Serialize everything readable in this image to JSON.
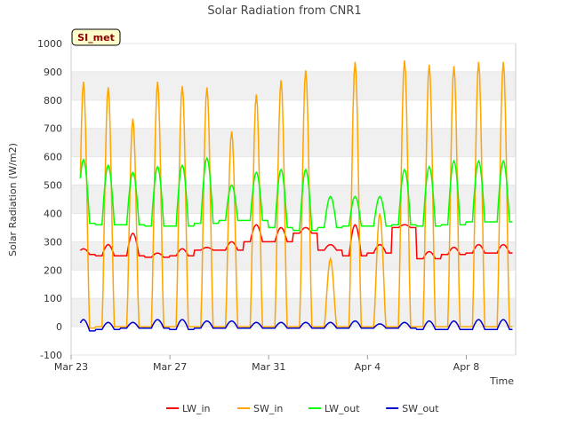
{
  "chart_data": {
    "type": "line",
    "title": "Solar Radiation from CNR1",
    "site_badge": "SI_met",
    "xlabel": "Time",
    "ylabel": "Solar Radiation (W/m2)",
    "ylim": [
      -100,
      1000
    ],
    "yticks": [
      "-100",
      "0",
      "100",
      "200",
      "300",
      "400",
      "500",
      "600",
      "700",
      "800",
      "900",
      "1000"
    ],
    "xlim": [
      "2024-03-23T00:00",
      "2024-04-10T00:00"
    ],
    "xticks": [
      {
        "date": "2024-03-23T00:00",
        "label": "Mar 23"
      },
      {
        "date": "2024-03-27T00:00",
        "label": "Mar 27"
      },
      {
        "date": "2024-03-31T00:00",
        "label": "Mar 31"
      },
      {
        "date": "2024-04-04T00:00",
        "label": "Apr 4"
      },
      {
        "date": "2024-04-08T00:00",
        "label": "Apr 8"
      }
    ],
    "grid": true,
    "legend_position": "bottom",
    "data_start": "2024-03-23T09:00",
    "data_end": "2024-04-09T21:00",
    "days": [
      "2024-03-23",
      "2024-03-24",
      "2024-03-25",
      "2024-03-26",
      "2024-03-27",
      "2024-03-28",
      "2024-03-29",
      "2024-03-30",
      "2024-03-31",
      "2024-04-01",
      "2024-04-02",
      "2024-04-03",
      "2024-04-04",
      "2024-04-05",
      "2024-04-06",
      "2024-04-07",
      "2024-04-08",
      "2024-04-09"
    ],
    "series": [
      {
        "name": "LW_in",
        "color": "#ff0000",
        "night": [
          255,
          250,
          250,
          245,
          250,
          270,
          270,
          300,
          300,
          330,
          270,
          250,
          260,
          350,
          240,
          255,
          260,
          260
        ],
        "peak": [
          275,
          290,
          330,
          260,
          275,
          280,
          300,
          360,
          350,
          350,
          290,
          360,
          290,
          360,
          265,
          280,
          290,
          290
        ]
      },
      {
        "name": "SW_in",
        "color": "#ffa500",
        "night": [
          -5,
          0,
          0,
          0,
          0,
          0,
          0,
          0,
          0,
          0,
          0,
          0,
          0,
          0,
          0,
          0,
          0,
          0
        ],
        "peak": [
          865,
          845,
          735,
          865,
          850,
          845,
          690,
          820,
          870,
          905,
          240,
          935,
          400,
          940,
          925,
          920,
          935,
          935
        ]
      },
      {
        "name": "LW_out",
        "color": "#00ff00",
        "night": [
          365,
          360,
          360,
          355,
          355,
          365,
          375,
          375,
          350,
          340,
          350,
          355,
          355,
          360,
          355,
          360,
          370,
          370
        ],
        "peak": [
          590,
          570,
          545,
          565,
          570,
          595,
          500,
          545,
          555,
          555,
          460,
          460,
          460,
          555,
          565,
          585,
          585,
          585
        ]
      },
      {
        "name": "SW_out",
        "color": "#0000cc",
        "night": [
          -15,
          -10,
          -5,
          -5,
          -10,
          -5,
          -5,
          -5,
          -5,
          -5,
          -5,
          -5,
          -5,
          -5,
          -10,
          -10,
          -10,
          -10
        ],
        "peak": [
          25,
          15,
          15,
          25,
          25,
          20,
          20,
          15,
          15,
          15,
          15,
          20,
          10,
          15,
          20,
          20,
          25,
          25
        ]
      }
    ]
  }
}
